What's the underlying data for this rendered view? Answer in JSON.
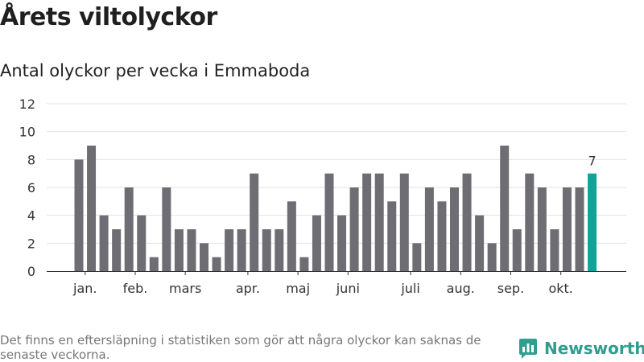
{
  "title": "Årets viltolyckor",
  "subtitle": "Antal olyckor per vecka i Emmaboda",
  "footnote": "Det finns en eftersläpning i statistiken som gör att några olyckor kan saknas de senaste veckorna.",
  "brand": {
    "name": "Newsworthy",
    "icon": "bar-chart-logo-icon"
  },
  "colors": {
    "bar": "#6e6d73",
    "highlight": "#0fa39a",
    "grid": "#e2e2e2",
    "brand": "#2e9e8e"
  },
  "chart_data": {
    "type": "bar",
    "title": "Årets viltolyckor",
    "subtitle": "Antal olyckor per vecka i Emmaboda",
    "xlabel": "",
    "ylabel": "",
    "ylim": [
      0,
      12
    ],
    "yticks": [
      0,
      2,
      4,
      6,
      8,
      10,
      12
    ],
    "grid": true,
    "legend": "none",
    "values": [
      8,
      9,
      4,
      3,
      6,
      4,
      1,
      6,
      3,
      3,
      2,
      1,
      3,
      3,
      7,
      3,
      3,
      5,
      1,
      4,
      7,
      4,
      6,
      7,
      7,
      5,
      7,
      2,
      6,
      5,
      6,
      7,
      4,
      2,
      9,
      3,
      7,
      6,
      3,
      6,
      6,
      7
    ],
    "highlight_index": 41,
    "highlight_label": "7",
    "month_labels": [
      {
        "label": "jan.",
        "index": 0.5
      },
      {
        "label": "feb.",
        "index": 4.5
      },
      {
        "label": "mars",
        "index": 8.5
      },
      {
        "label": "apr.",
        "index": 13.5
      },
      {
        "label": "maj",
        "index": 17.5
      },
      {
        "label": "juni",
        "index": 21.5
      },
      {
        "label": "juli",
        "index": 26.5
      },
      {
        "label": "aug.",
        "index": 30.5
      },
      {
        "label": "sep.",
        "index": 34.5
      },
      {
        "label": "okt.",
        "index": 38.5
      }
    ]
  }
}
